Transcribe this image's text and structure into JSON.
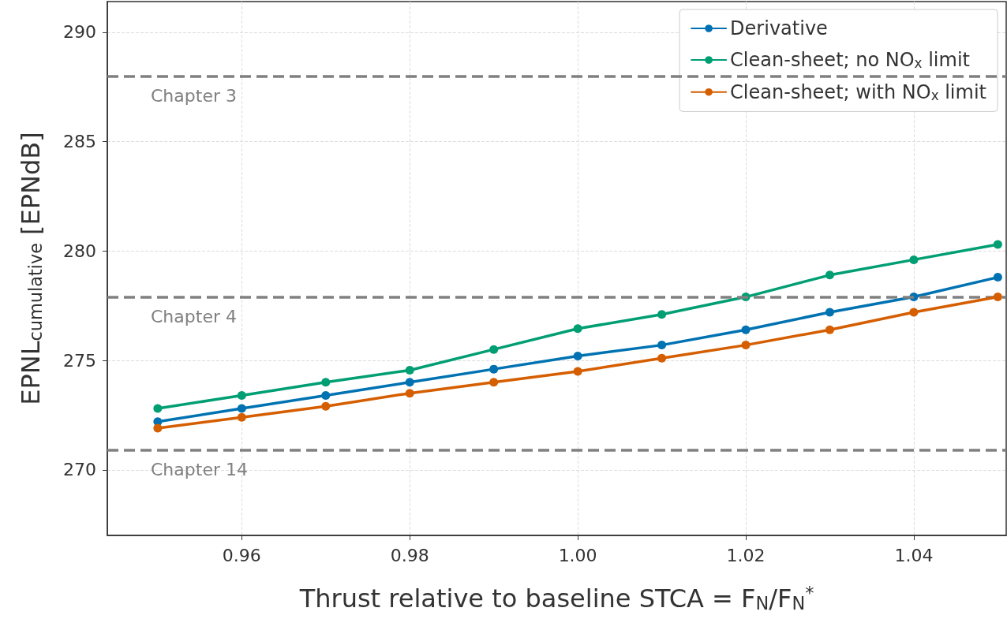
{
  "chart_data": {
    "type": "line",
    "xlabel": "Thrust relative to baseline STCA = F$_{N}$/F$_{N}$$^{*}$",
    "ylabel": "EPNL$_{cumulative}$ [EPNdB]",
    "x": [
      0.95,
      0.96,
      0.97,
      0.98,
      0.99,
      1.0,
      1.01,
      1.02,
      1.03,
      1.04,
      1.05
    ],
    "series": [
      {
        "name": "Derivative",
        "color": "#0072b2",
        "values": [
          272.2,
          272.8,
          273.4,
          274.0,
          274.6,
          275.2,
          275.7,
          276.4,
          277.2,
          277.9,
          278.8
        ]
      },
      {
        "name": "Clean-sheet; no NO$_{x}$ limit",
        "color": "#009e73",
        "values": [
          272.8,
          273.4,
          274.0,
          274.55,
          275.5,
          276.45,
          277.1,
          277.9,
          278.9,
          279.6,
          280.3
        ]
      },
      {
        "name": "Clean-sheet; with NO$_{x}$ limit",
        "color": "#d55e00",
        "values": [
          271.9,
          272.4,
          272.9,
          273.5,
          274.0,
          274.5,
          275.1,
          275.7,
          276.4,
          277.2,
          277.9
        ]
      }
    ],
    "xlim": [
      0.944,
      1.051
    ],
    "xticks": [
      0.96,
      0.98,
      {
        "value": 1.0,
        "label": "1.00"
      },
      1.02,
      1.04
    ],
    "ylim": [
      267,
      291.4
    ],
    "yticks": [
      270,
      275,
      280,
      285,
      290
    ],
    "ref_lines": [
      {
        "axis": "y",
        "value": 288,
        "label": "Chapter 3",
        "color": "#808080",
        "line_style": "dashed"
      },
      {
        "axis": "y",
        "value": 277.9,
        "label": "Chapter 4",
        "color": "#808080",
        "line_style": "dashed"
      },
      {
        "axis": "y",
        "value": 270.9,
        "label": "Chapter 14",
        "color": "#808080",
        "line_style": "dashed"
      }
    ],
    "grid": true,
    "legend": "top right",
    "marker": "circle",
    "line_style": "solid"
  }
}
